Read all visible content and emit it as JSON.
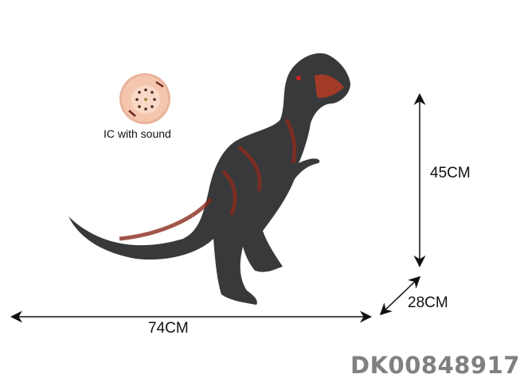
{
  "product": {
    "sound_module_label": "IC with sound",
    "dimensions": {
      "height": "45CM",
      "depth": "28CM",
      "length": "74CM"
    },
    "item_code": "DK00848917"
  },
  "colors": {
    "dinosaur_body": "#38393b",
    "dinosaur_accent": "#8a2a1e",
    "sound_module": "#f2bfa6",
    "code_text": "#808080"
  }
}
